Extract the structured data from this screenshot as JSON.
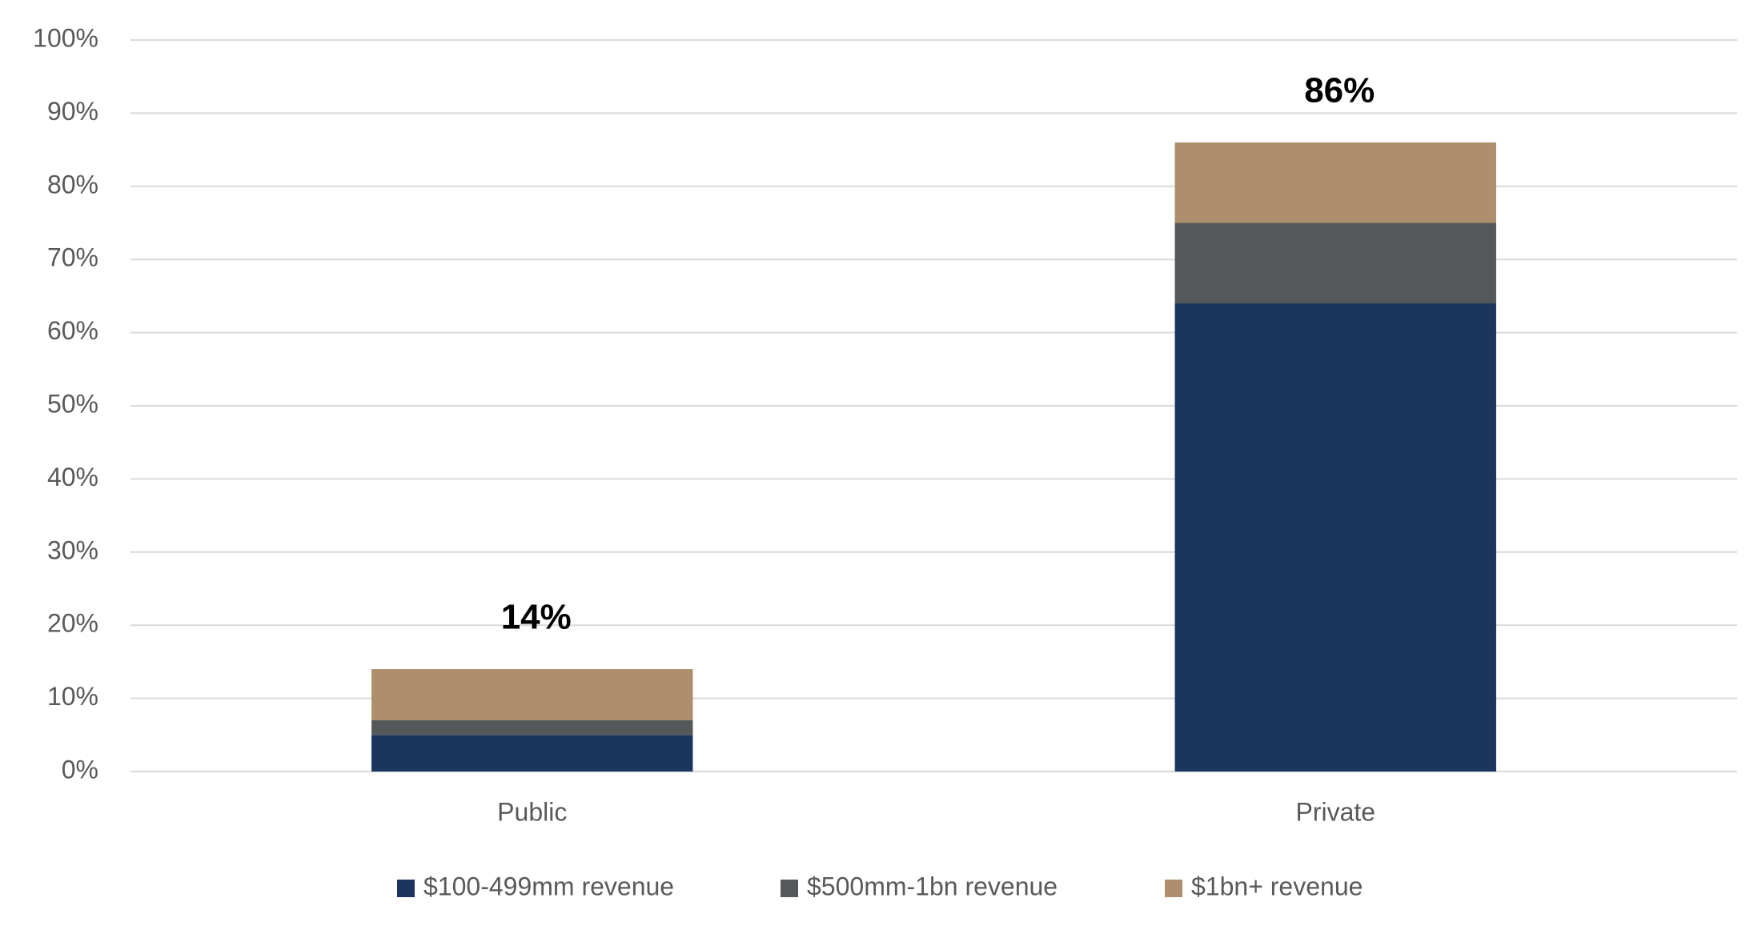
{
  "chart_data": {
    "type": "stacked_bar",
    "categories": [
      "Public",
      "Private"
    ],
    "series": [
      {
        "name": "$100-499mm revenue",
        "color": "#1c355e",
        "values": [
          5,
          64
        ]
      },
      {
        "name": "$500mm-1bn revenue",
        "color": "#54585a",
        "values": [
          2,
          11
        ]
      },
      {
        "name": "$1bn+ revenue",
        "color": "#ad8f6d",
        "values": [
          7,
          11
        ]
      }
    ],
    "totals": [
      14,
      86
    ],
    "total_labels": [
      "14%",
      "86%"
    ],
    "ylim": [
      0,
      100
    ],
    "yticks": [
      {
        "value": 0,
        "label": "0%"
      },
      {
        "value": 10,
        "label": "10%"
      },
      {
        "value": 20,
        "label": "20%"
      },
      {
        "value": 30,
        "label": "30%"
      },
      {
        "value": 40,
        "label": "40%"
      },
      {
        "value": 50,
        "label": "50%"
      },
      {
        "value": 60,
        "label": "60%"
      },
      {
        "value": 70,
        "label": "70%"
      },
      {
        "value": 80,
        "label": "80%"
      },
      {
        "value": 90,
        "label": "90%"
      },
      {
        "value": 100,
        "label": "100%"
      }
    ],
    "grid": true,
    "legend": "bottom"
  }
}
